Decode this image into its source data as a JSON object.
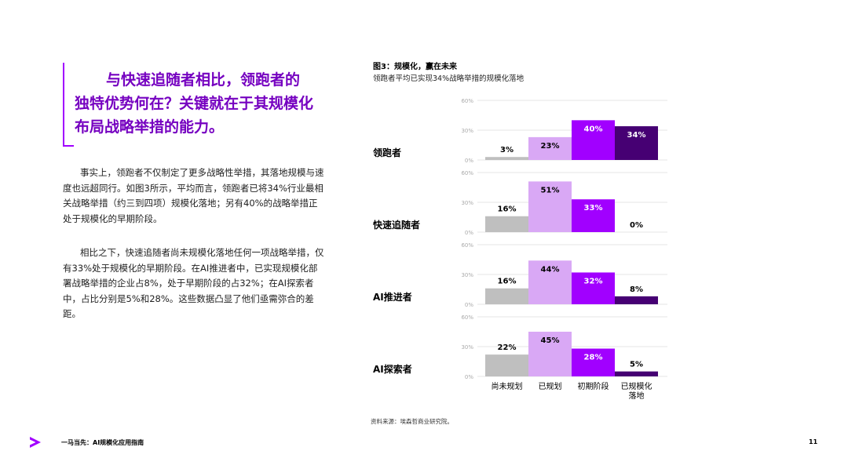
{
  "callout": {
    "line1": "与快速追随者相比，领跑者的",
    "line2": "独特优势何在？关键就在于其规模化",
    "line3": "布局战略举措的能力。"
  },
  "body": {
    "paragraph1": "事实上，领跑者不仅制定了更多战略性举措，其落地规模与速度也远超同行。如图3所示，平均而言，领跑者已将34%行业最相关战略举措（约三到四项）规模化落地；另有40%的战略举措正处于规模化的早期阶段。",
    "paragraph2": "相比之下，快速追随者尚未规模化落地任何一项战略举措，仅有33%处于规模化的早期阶段。在AI推进者中，已实现规模化部署战略举措的企业占8%，处于早期阶段的占32%；在AI探索者中，占比分别是5%和28%。这些数据凸显了他们亟需弥合的差距。"
  },
  "figure": {
    "title": "图3：规模化，赢在未来",
    "subtitle": "领跑者平均已实现34%战略举措的规模化落地",
    "source": "资料来源：埃森哲商业研究院。"
  },
  "footer": {
    "title": "一马当先：AI规模化应用指南",
    "page": "11"
  },
  "colors": {
    "accent": "#a100ff",
    "callout_text": "#7500c0",
    "series": [
      "#bfbfbf",
      "#d9a8f5",
      "#a100ff",
      "#460073"
    ]
  },
  "chart_data": {
    "type": "bar",
    "layout": "small-multiples",
    "categories": [
      "尚未规划",
      "已规划",
      "初期阶段",
      "已规模化落地"
    ],
    "ylim": [
      0,
      60
    ],
    "yticks": [
      "60%",
      "30%",
      "0%"
    ],
    "panels": [
      {
        "name": "领跑者",
        "values": [
          3,
          23,
          40,
          34
        ],
        "labels": [
          "3%",
          "23%",
          "40%",
          "34%"
        ]
      },
      {
        "name": "快速追随者",
        "values": [
          16,
          51,
          33,
          0
        ],
        "labels": [
          "16%",
          "51%",
          "33%",
          "0%"
        ]
      },
      {
        "name": "AI推进者",
        "values": [
          16,
          44,
          32,
          8
        ],
        "labels": [
          "16%",
          "44%",
          "32%",
          "8%"
        ]
      },
      {
        "name": "AI探索者",
        "values": [
          22,
          45,
          28,
          5
        ],
        "labels": [
          "22%",
          "45%",
          "28%",
          "5%"
        ]
      }
    ]
  }
}
